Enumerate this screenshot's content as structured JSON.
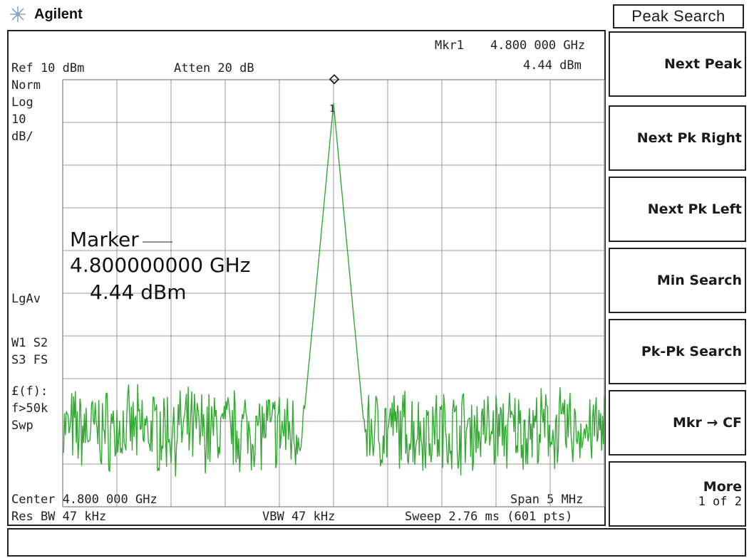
{
  "brand": {
    "name": "Agilent",
    "logo_icon": "agilent-spark-icon"
  },
  "softkeys": {
    "menu_title": "Peak Search",
    "keys": [
      {
        "label": "Next Peak",
        "sub": ""
      },
      {
        "label": "Next Pk Right",
        "sub": ""
      },
      {
        "label": "Next Pk Left",
        "sub": ""
      },
      {
        "label": "Min Search",
        "sub": ""
      },
      {
        "label": "Pk-Pk Search",
        "sub": ""
      },
      {
        "label": "Mkr → CF",
        "sub": ""
      },
      {
        "label": "More",
        "sub": "1 of 2"
      }
    ]
  },
  "display": {
    "marker_readout": {
      "label": "Mkr1",
      "frequency": "4.800 000 GHz",
      "amplitude": "4.44 dBm"
    },
    "ref_level": "Ref 10 dBm",
    "atten": "Atten 20 dB",
    "left_annotations": {
      "norm": "Norm",
      "log": "Log",
      "scale_value": "10",
      "scale_unit": "dB/",
      "detector": "LgAv",
      "trace_w1s2": "W1  S2",
      "trace_s3fs": "S3  FS",
      "func_line1": "£(f):",
      "func_line2": "f>50k",
      "func_line3": "Swp"
    },
    "marker_box": {
      "title": "Marker",
      "frequency": "4.800000000 GHz",
      "amplitude": "4.44 dBm"
    },
    "marker_id": "1",
    "bottom": {
      "center": "Center 4.800 000 GHz",
      "span": "Span 5 MHz",
      "res_bw": "Res BW 47 kHz",
      "vbw": "VBW 47 kHz",
      "sweep": "Sweep 2.76 ms (601 pts)"
    }
  },
  "status_line": "",
  "colors": {
    "trace": "#33a833",
    "grid": "#9a9a9a",
    "border": "#222222"
  },
  "chart_data": {
    "type": "line",
    "x_center_ghz": 4.8,
    "span_mhz": 5,
    "ref_level_dbm": 10,
    "scale_db_per_div": 10,
    "divisions": 10,
    "points": 601,
    "marker": {
      "x_ghz": 4.8,
      "y_dbm": 4.44
    },
    "noise_floor_dbm": -72,
    "peak_dbm": 4.44
  }
}
